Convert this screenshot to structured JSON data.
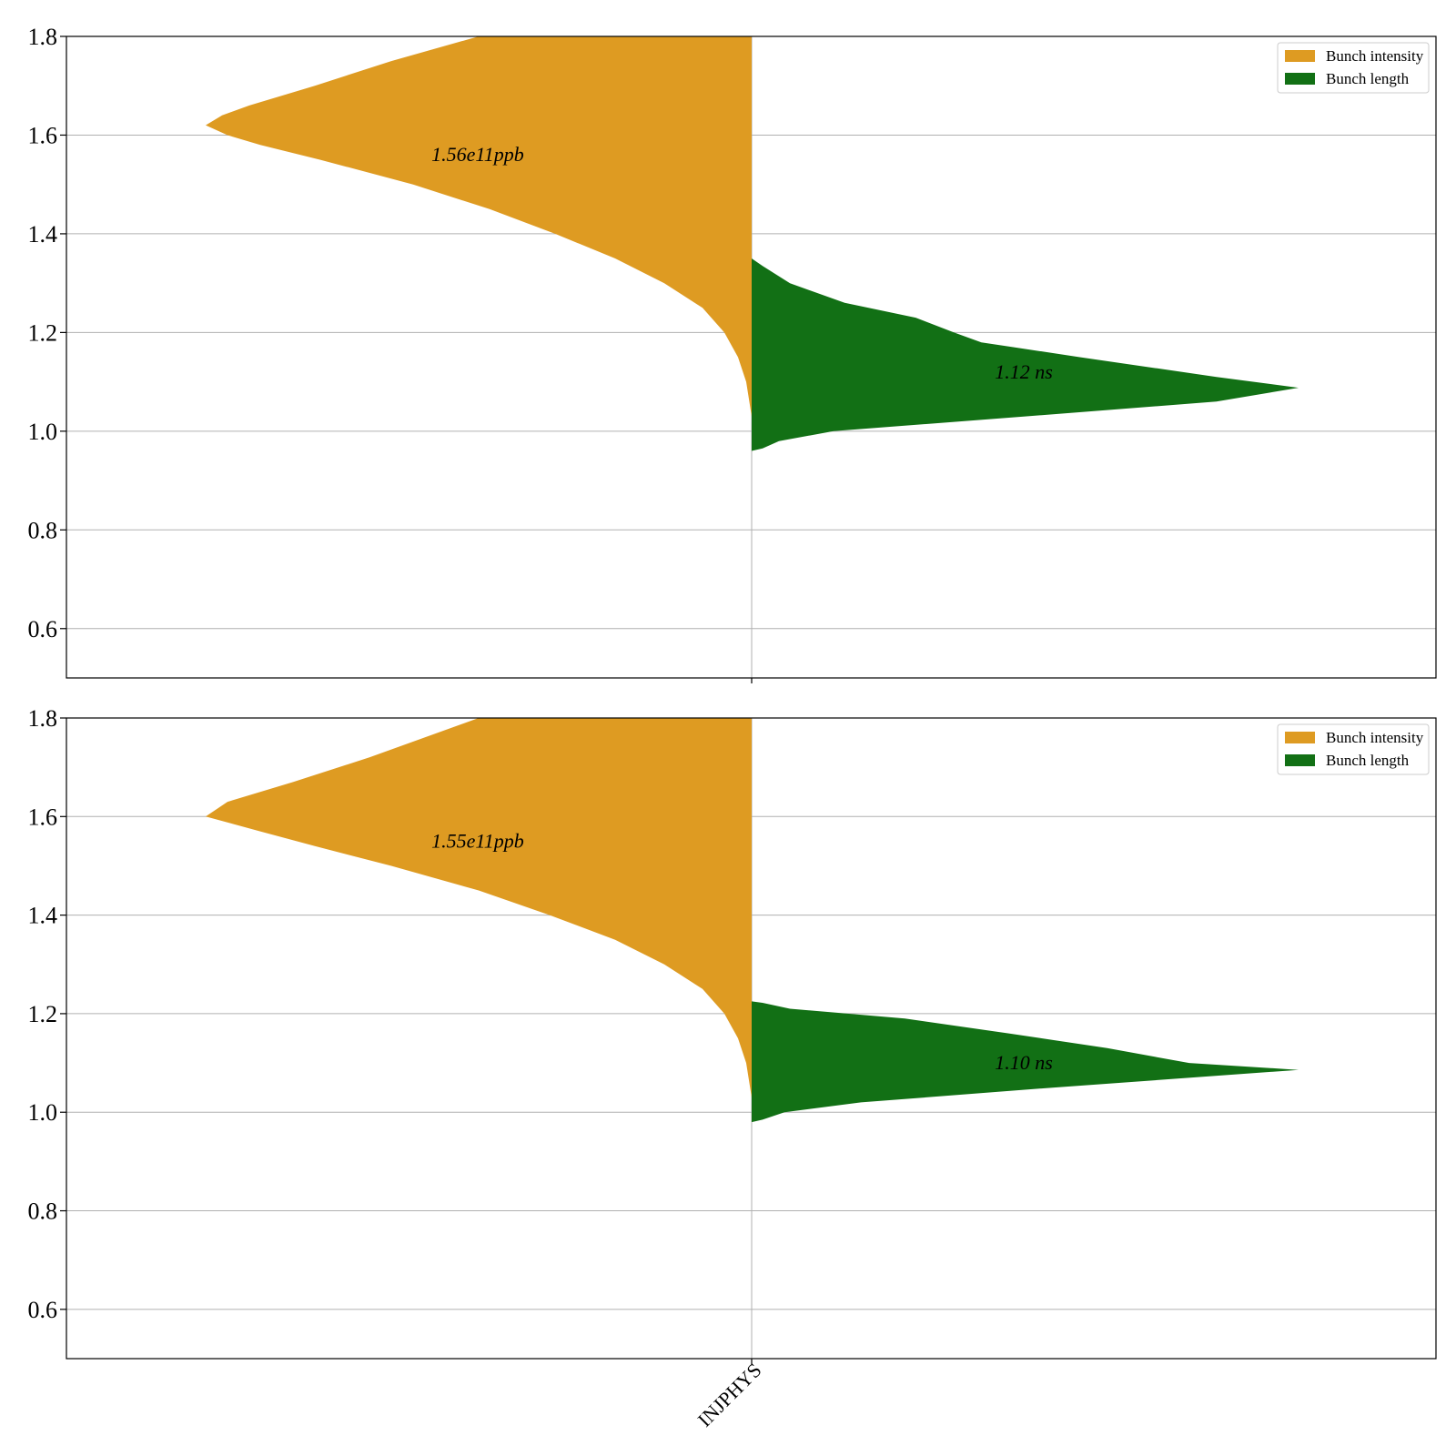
{
  "colors": {
    "intensity": "#DE9B22",
    "length": "#127015",
    "grid": "#b0b0b0",
    "axis": "#000000"
  },
  "chart_data": [
    {
      "type": "violin",
      "ylim": [
        0.5,
        1.8
      ],
      "yticks": [
        "0.6",
        "0.8",
        "1.0",
        "1.2",
        "1.4",
        "1.6",
        "1.8"
      ],
      "categories": [
        "INJPHYS"
      ],
      "grid": "horizontal",
      "legend_position": "top-right",
      "legend": [
        "Bunch intensity",
        "Bunch length"
      ],
      "series": [
        {
          "name": "Bunch intensity",
          "side": "left",
          "ymin": 1.03,
          "ymax": 1.8,
          "profile": [
            [
              1.03,
              0.0
            ],
            [
              1.1,
              0.01
            ],
            [
              1.15,
              0.025
            ],
            [
              1.2,
              0.05
            ],
            [
              1.25,
              0.09
            ],
            [
              1.3,
              0.16
            ],
            [
              1.35,
              0.25
            ],
            [
              1.4,
              0.36
            ],
            [
              1.45,
              0.48
            ],
            [
              1.5,
              0.62
            ],
            [
              1.55,
              0.79
            ],
            [
              1.58,
              0.9
            ],
            [
              1.6,
              0.96
            ],
            [
              1.62,
              1.0
            ],
            [
              1.64,
              0.97
            ],
            [
              1.66,
              0.92
            ],
            [
              1.7,
              0.8
            ],
            [
              1.75,
              0.66
            ],
            [
              1.8,
              0.5
            ]
          ],
          "annotation": "1.56e11ppb",
          "annotation_y": 1.56
        },
        {
          "name": "Bunch length",
          "side": "right",
          "ymin": 0.96,
          "ymax": 1.35,
          "profile": [
            [
              0.96,
              0.0
            ],
            [
              0.965,
              0.02
            ],
            [
              0.98,
              0.05
            ],
            [
              1.0,
              0.15
            ],
            [
              1.03,
              0.5
            ],
            [
              1.06,
              0.85
            ],
            [
              1.088,
              1.0
            ],
            [
              1.11,
              0.85
            ],
            [
              1.15,
              0.6
            ],
            [
              1.18,
              0.42
            ],
            [
              1.2,
              0.37
            ],
            [
              1.23,
              0.3
            ],
            [
              1.26,
              0.17
            ],
            [
              1.3,
              0.07
            ],
            [
              1.335,
              0.02
            ],
            [
              1.35,
              0.0
            ]
          ],
          "annotation": "1.12 ns",
          "annotation_y": 1.12
        }
      ]
    },
    {
      "type": "violin",
      "ylim": [
        0.5,
        1.8
      ],
      "yticks": [
        "0.6",
        "0.8",
        "1.0",
        "1.2",
        "1.4",
        "1.6",
        "1.8"
      ],
      "categories": [
        "INJPHYS"
      ],
      "grid": "horizontal",
      "legend_position": "top-right",
      "legend": [
        "Bunch intensity",
        "Bunch length"
      ],
      "series": [
        {
          "name": "Bunch intensity",
          "side": "left",
          "ymin": 1.03,
          "ymax": 1.8,
          "profile": [
            [
              1.03,
              0.0
            ],
            [
              1.1,
              0.01
            ],
            [
              1.15,
              0.025
            ],
            [
              1.2,
              0.05
            ],
            [
              1.25,
              0.09
            ],
            [
              1.3,
              0.16
            ],
            [
              1.35,
              0.25
            ],
            [
              1.4,
              0.37
            ],
            [
              1.45,
              0.5
            ],
            [
              1.5,
              0.66
            ],
            [
              1.54,
              0.8
            ],
            [
              1.57,
              0.9
            ],
            [
              1.6,
              1.0
            ],
            [
              1.63,
              0.96
            ],
            [
              1.67,
              0.84
            ],
            [
              1.72,
              0.7
            ],
            [
              1.8,
              0.5
            ]
          ],
          "annotation": "1.55e11ppb",
          "annotation_y": 1.55
        },
        {
          "name": "Bunch length",
          "side": "right",
          "ymin": 0.98,
          "ymax": 1.225,
          "profile": [
            [
              0.98,
              0.0
            ],
            [
              0.985,
              0.02
            ],
            [
              1.0,
              0.06
            ],
            [
              1.02,
              0.2
            ],
            [
              1.05,
              0.55
            ],
            [
              1.086,
              1.0
            ],
            [
              1.1,
              0.8
            ],
            [
              1.13,
              0.65
            ],
            [
              1.16,
              0.47
            ],
            [
              1.19,
              0.28
            ],
            [
              1.21,
              0.07
            ],
            [
              1.222,
              0.02
            ],
            [
              1.225,
              0.0
            ]
          ],
          "annotation": "1.10 ns",
          "annotation_y": 1.1
        }
      ]
    }
  ]
}
